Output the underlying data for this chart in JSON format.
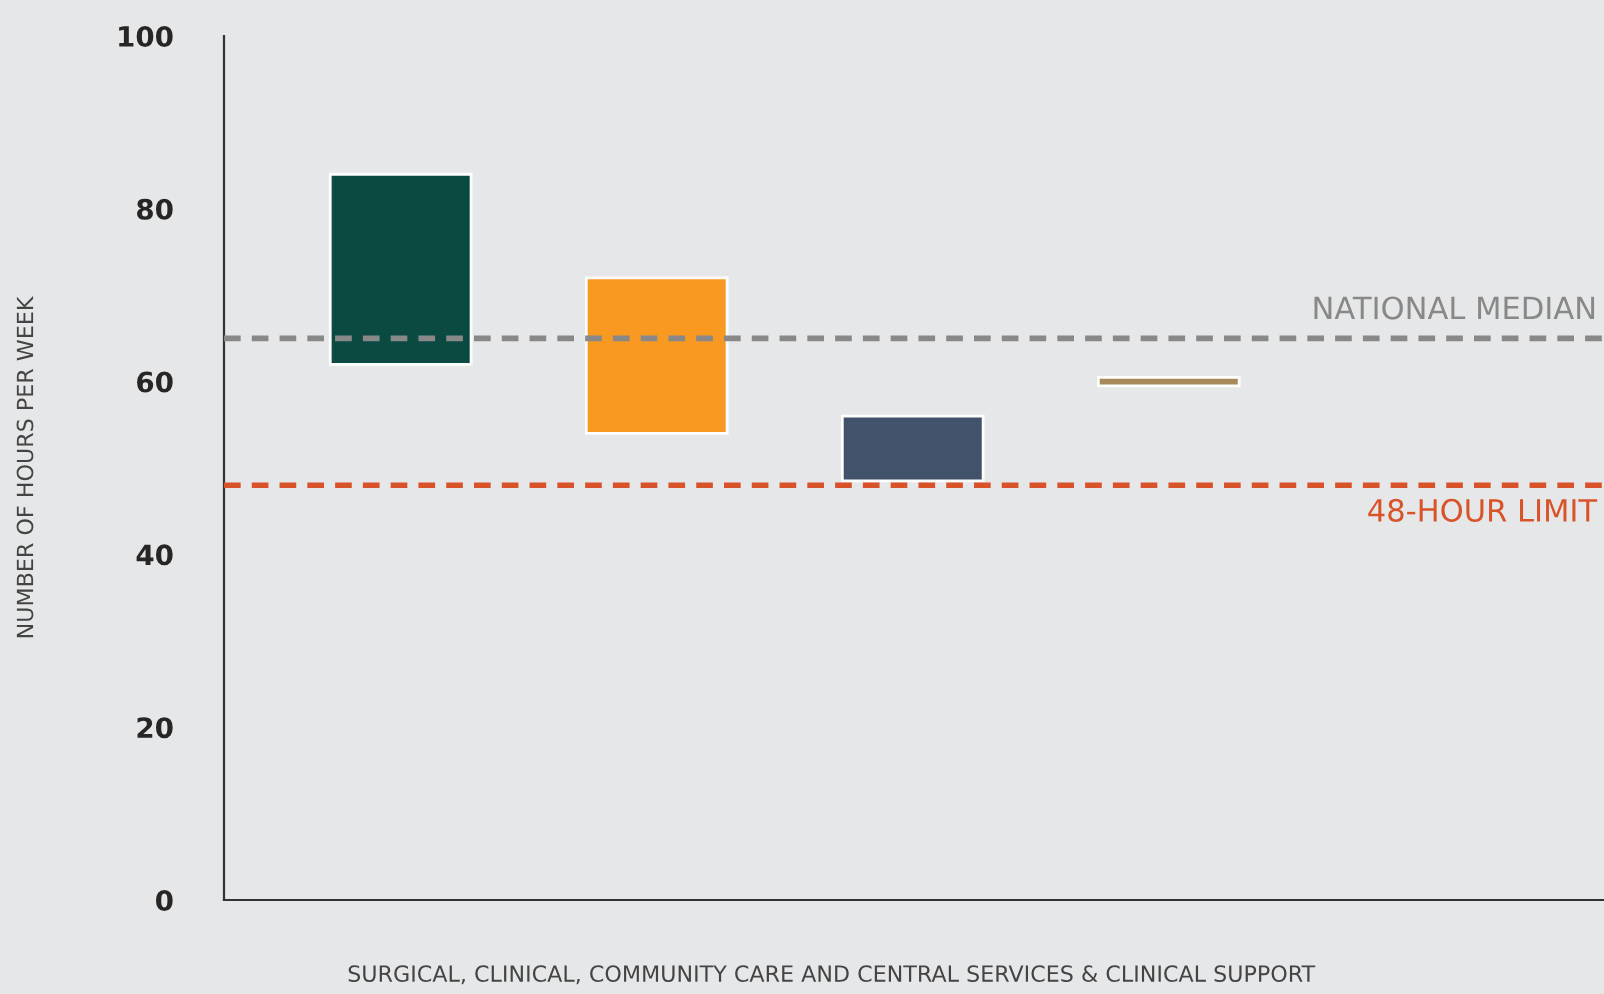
{
  "chart_data": {
    "type": "bar",
    "xlabel": "SURGICAL, CLINICAL, COMMUNITY CARE AND CENTRAL SERVICES & CLINICAL SUPPORT",
    "ylabel": "NUMBER OF HOURS PER WEEK",
    "categories": [
      null,
      null,
      null,
      null
    ],
    "base": [
      62,
      54,
      48.5,
      59.5
    ],
    "values": [
      22,
      18,
      7.5,
      1
    ],
    "colors": [
      "#0b4a40",
      "#f89a22",
      "#41526a",
      "#a88a5a"
    ],
    "ylim": [
      0,
      100
    ],
    "yticks": [
      0,
      20,
      40,
      60,
      80,
      100
    ],
    "ref_lines": [
      {
        "axis": "y",
        "value": 65,
        "label": "NATIONAL MEDIAN",
        "color": "#888888",
        "line_style": "dashed"
      },
      {
        "axis": "y",
        "value": 48,
        "label": "48-HOUR LIMIT",
        "color": "#d9532a",
        "line_style": "dashed"
      }
    ],
    "grid": false,
    "legend": false
  }
}
